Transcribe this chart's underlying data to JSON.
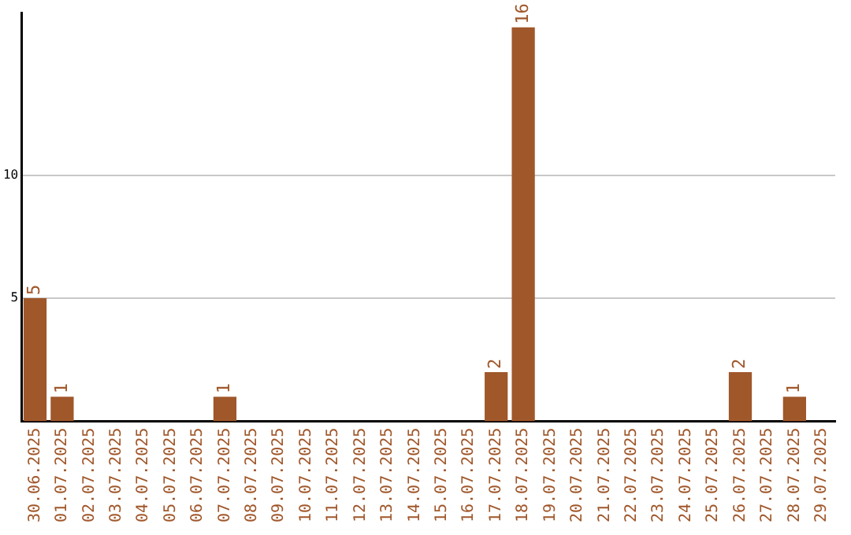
{
  "chart_data": {
    "type": "bar",
    "categories": [
      "30.06.2025",
      "01.07.2025",
      "02.07.2025",
      "03.07.2025",
      "04.07.2025",
      "05.07.2025",
      "06.07.2025",
      "07.07.2025",
      "08.07.2025",
      "09.07.2025",
      "10.07.2025",
      "11.07.2025",
      "12.07.2025",
      "13.07.2025",
      "14.07.2025",
      "15.07.2025",
      "16.07.2025",
      "17.07.2025",
      "18.07.2025",
      "19.07.2025",
      "20.07.2025",
      "21.07.2025",
      "22.07.2025",
      "23.07.2025",
      "24.07.2025",
      "25.07.2025",
      "26.07.2025",
      "27.07.2025",
      "28.07.2025",
      "29.07.2025"
    ],
    "values": [
      5,
      1,
      0,
      0,
      0,
      0,
      0,
      1,
      0,
      0,
      0,
      0,
      0,
      0,
      0,
      0,
      0,
      2,
      16,
      0,
      0,
      0,
      0,
      0,
      0,
      0,
      2,
      0,
      1,
      0
    ],
    "value_labels": [
      "5",
      "1",
      null,
      null,
      null,
      null,
      null,
      "1",
      null,
      null,
      null,
      null,
      null,
      null,
      null,
      null,
      null,
      "2",
      "16",
      null,
      null,
      null,
      null,
      null,
      null,
      null,
      "2",
      null,
      "1",
      null
    ],
    "color": "#a0572a",
    "ylim": [
      0,
      16.6
    ],
    "yticks": [
      5,
      10
    ],
    "grid": "y",
    "legend": false
  }
}
